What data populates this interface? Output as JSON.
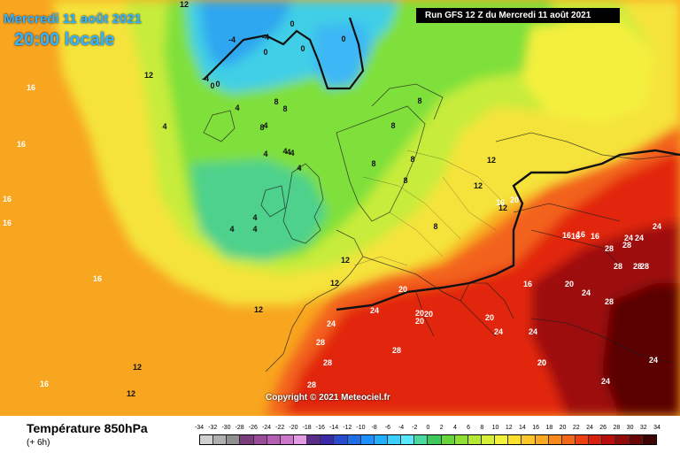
{
  "title": {
    "date": "Mercredi 11 août 2021",
    "local_time": "20:00 locale"
  },
  "run_info": "Run GFS 12 Z du Mercredi 11 août 2021",
  "copyright": "Copyright © 2021 Meteociel.fr",
  "variable": {
    "name": "Température 850hPa",
    "step": "(+ 6h)"
  },
  "legend": {
    "labels": [
      "-34",
      "-32",
      "-30",
      "-28",
      "-26",
      "-24",
      "-22",
      "-20",
      "-18",
      "-16",
      "-14",
      "-12",
      "-10",
      "-8",
      "-6",
      "-4",
      "-2",
      "0",
      "2",
      "4",
      "6",
      "8",
      "10",
      "12",
      "14",
      "16",
      "18",
      "20",
      "22",
      "24",
      "26",
      "28",
      "30",
      "32",
      "34"
    ],
    "colors": [
      "#d0d0d0",
      "#b0b0b0",
      "#909090",
      "#7a3c7a",
      "#9a4c9a",
      "#b45fb4",
      "#cc77cc",
      "#e39be3",
      "#5a2d8a",
      "#3a2aa8",
      "#2a4bd0",
      "#1f6fe8",
      "#1e90ff",
      "#21b0ff",
      "#3ccfff",
      "#5ae8ff",
      "#4cd9a0",
      "#3ec95c",
      "#66d63b",
      "#8fe035",
      "#b4e836",
      "#d6ef38",
      "#f2f23a",
      "#fbe02f",
      "#fcc52a",
      "#fca823",
      "#f88a1d",
      "#f46717",
      "#ec4012",
      "#d8200e",
      "#b80f0e",
      "#900a0a",
      "#6a0606",
      "#3e0303"
    ]
  },
  "contour_labels": [
    {
      "v": "0",
      "tone": "dark"
    },
    {
      "v": "-4",
      "tone": "dark"
    },
    {
      "v": "-4",
      "tone": "dark"
    },
    {
      "v": "0",
      "tone": "dark"
    },
    {
      "v": "0",
      "tone": "dark"
    },
    {
      "v": "0",
      "tone": "dark"
    },
    {
      "v": "-4",
      "tone": "dark"
    },
    {
      "v": "0",
      "tone": "dark"
    },
    {
      "v": "0",
      "tone": "dark"
    },
    {
      "v": "4",
      "tone": "dark"
    },
    {
      "v": "4",
      "tone": "dark"
    },
    {
      "v": "4",
      "tone": "dark"
    },
    {
      "v": "4",
      "tone": "dark"
    },
    {
      "v": "4",
      "tone": "dark"
    },
    {
      "v": "8",
      "tone": "dark"
    },
    {
      "v": "8",
      "tone": "dark"
    },
    {
      "v": "8",
      "tone": "dark"
    },
    {
      "v": "4",
      "tone": "dark"
    },
    {
      "v": "4",
      "tone": "dark"
    },
    {
      "v": "4",
      "tone": "dark"
    },
    {
      "v": "4",
      "tone": "dark"
    },
    {
      "v": "4",
      "tone": "dark"
    },
    {
      "v": "4",
      "tone": "dark"
    },
    {
      "v": "8",
      "tone": "dark"
    },
    {
      "v": "8",
      "tone": "dark"
    },
    {
      "v": "8",
      "tone": "dark"
    },
    {
      "v": "8",
      "tone": "dark"
    },
    {
      "v": "8",
      "tone": "dark"
    },
    {
      "v": "8",
      "tone": "dark"
    },
    {
      "v": "12",
      "tone": "dark"
    },
    {
      "v": "12",
      "tone": "dark"
    },
    {
      "v": "12",
      "tone": "dark"
    },
    {
      "v": "12",
      "tone": "dark"
    },
    {
      "v": "12",
      "tone": "dark"
    },
    {
      "v": "12",
      "tone": "dark"
    },
    {
      "v": "12",
      "tone": "dark"
    },
    {
      "v": "12",
      "tone": "dark"
    },
    {
      "v": "12",
      "tone": "dark"
    },
    {
      "v": "12",
      "tone": "dark"
    },
    {
      "v": "16",
      "tone": "light"
    },
    {
      "v": "16",
      "tone": "light"
    },
    {
      "v": "16",
      "tone": "light"
    },
    {
      "v": "16",
      "tone": "light"
    },
    {
      "v": "16",
      "tone": "light"
    },
    {
      "v": "16",
      "tone": "light"
    },
    {
      "v": "16",
      "tone": "light"
    },
    {
      "v": "16",
      "tone": "light"
    },
    {
      "v": "16",
      "tone": "light"
    },
    {
      "v": "20",
      "tone": "light"
    },
    {
      "v": "20",
      "tone": "light"
    },
    {
      "v": "20",
      "tone": "light"
    },
    {
      "v": "20",
      "tone": "light"
    },
    {
      "v": "20",
      "tone": "light"
    },
    {
      "v": "20",
      "tone": "light"
    },
    {
      "v": "20",
      "tone": "light"
    },
    {
      "v": "20",
      "tone": "light"
    },
    {
      "v": "24",
      "tone": "light"
    },
    {
      "v": "24",
      "tone": "light"
    },
    {
      "v": "24",
      "tone": "light"
    },
    {
      "v": "24",
      "tone": "light"
    },
    {
      "v": "24",
      "tone": "light"
    },
    {
      "v": "24",
      "tone": "light"
    },
    {
      "v": "24",
      "tone": "light"
    },
    {
      "v": "24",
      "tone": "light"
    },
    {
      "v": "24",
      "tone": "light"
    },
    {
      "v": "24",
      "tone": "light"
    },
    {
      "v": "28",
      "tone": "light"
    },
    {
      "v": "28",
      "tone": "light"
    },
    {
      "v": "28",
      "tone": "light"
    },
    {
      "v": "28",
      "tone": "light"
    },
    {
      "v": "28",
      "tone": "light"
    },
    {
      "v": "28",
      "tone": "light"
    },
    {
      "v": "28",
      "tone": "light"
    },
    {
      "v": "28",
      "tone": "light"
    },
    {
      "v": "28",
      "tone": "light"
    },
    {
      "v": "28",
      "tone": "light"
    },
    {
      "v": "20",
      "tone": "light"
    },
    {
      "v": "16",
      "tone": "light"
    },
    {
      "v": "16",
      "tone": "light"
    },
    {
      "v": "16",
      "tone": "light"
    }
  ]
}
